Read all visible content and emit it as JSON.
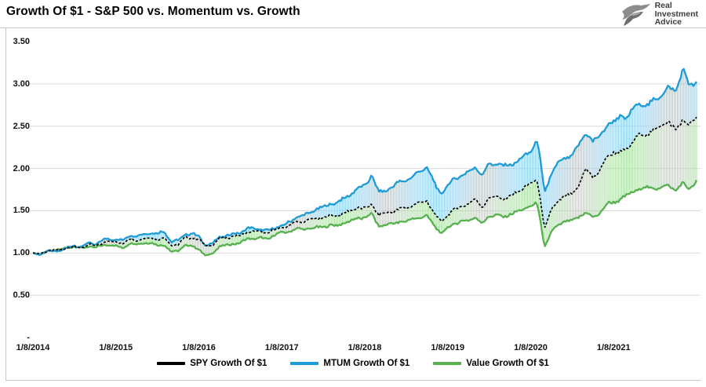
{
  "page": {
    "title": "Growth Of $1 - S&P 500 vs. Momentum vs. Growth"
  },
  "logo": {
    "icon": "eagle-icon",
    "lines": [
      "Real",
      "Investment",
      "Advice"
    ]
  },
  "chart_data": {
    "type": "line",
    "title": "Growth Of $1 - S&P 500 vs. Momentum vs. Growth",
    "xlabel": "",
    "ylabel": "",
    "ylim": [
      0,
      3.5
    ],
    "grid": "horizontal gridlines every 0.50 from 0.50 to 3.00",
    "legend_position": "bottom-center",
    "x_frequency": "weekly (rendered), anchors sampled monthly Jan-2014 through Dec-2021 plus final value",
    "x_tick_labels": [
      "1/8/2014",
      "1/8/2015",
      "1/8/2016",
      "1/8/2017",
      "1/8/2018",
      "1/8/2019",
      "1/8/2020",
      "1/8/2021"
    ],
    "y_tick_labels": [
      "3.50",
      "3.00",
      "2.50",
      "2.00",
      "1.50",
      "1.00",
      "0.50",
      "-"
    ],
    "y_tick_values": [
      3.5,
      3.0,
      2.5,
      2.0,
      1.5,
      1.0,
      0.5,
      0
    ],
    "band_fill": {
      "description": "vertical hatch lines between MTUM (top) and Value (bottom) at every weekly point",
      "top_color": "#8ccbea",
      "bottom_color": "#a8d9a1"
    },
    "series": [
      {
        "name": "SPY Growth Of $1",
        "color": "#000000",
        "style": "dashed",
        "values": [
          1.0,
          0.99,
          1.02,
          1.03,
          1.04,
          1.06,
          1.08,
          1.06,
          1.1,
          1.08,
          1.12,
          1.14,
          1.13,
          1.11,
          1.17,
          1.15,
          1.17,
          1.18,
          1.16,
          1.18,
          1.09,
          1.1,
          1.18,
          1.18,
          1.16,
          1.08,
          1.1,
          1.17,
          1.18,
          1.2,
          1.2,
          1.25,
          1.25,
          1.25,
          1.23,
          1.28,
          1.3,
          1.32,
          1.37,
          1.37,
          1.39,
          1.41,
          1.42,
          1.44,
          1.44,
          1.47,
          1.5,
          1.54,
          1.52,
          1.58,
          1.45,
          1.47,
          1.49,
          1.52,
          1.53,
          1.57,
          1.6,
          1.61,
          1.48,
          1.36,
          1.46,
          1.52,
          1.55,
          1.59,
          1.63,
          1.55,
          1.65,
          1.67,
          1.64,
          1.67,
          1.72,
          1.77,
          1.82,
          1.86,
          1.27,
          1.52,
          1.62,
          1.67,
          1.7,
          1.8,
          2.0,
          1.9,
          1.96,
          2.14,
          2.2,
          2.18,
          2.24,
          2.34,
          2.4,
          2.41,
          2.46,
          2.52,
          2.56,
          2.44,
          2.58,
          2.52,
          2.58
        ]
      },
      {
        "name": "MTUM Growth Of $1",
        "color": "#1f9bd7",
        "style": "solid",
        "values": [
          1.0,
          0.98,
          1.02,
          1.02,
          1.03,
          1.06,
          1.09,
          1.07,
          1.12,
          1.1,
          1.15,
          1.17,
          1.16,
          1.15,
          1.21,
          1.2,
          1.22,
          1.24,
          1.23,
          1.26,
          1.13,
          1.15,
          1.22,
          1.23,
          1.2,
          1.08,
          1.12,
          1.19,
          1.2,
          1.23,
          1.24,
          1.29,
          1.29,
          1.28,
          1.26,
          1.3,
          1.32,
          1.36,
          1.42,
          1.44,
          1.47,
          1.52,
          1.54,
          1.58,
          1.6,
          1.64,
          1.7,
          1.76,
          1.8,
          1.92,
          1.72,
          1.74,
          1.78,
          1.84,
          1.86,
          1.9,
          1.98,
          2.01,
          1.84,
          1.69,
          1.8,
          1.88,
          1.92,
          1.96,
          2.01,
          1.93,
          2.05,
          2.06,
          2.03,
          2.04,
          2.08,
          2.14,
          2.2,
          2.34,
          1.7,
          1.95,
          2.06,
          2.12,
          2.16,
          2.28,
          2.43,
          2.32,
          2.38,
          2.52,
          2.55,
          2.62,
          2.6,
          2.72,
          2.78,
          2.74,
          2.82,
          2.88,
          2.95,
          2.92,
          3.18,
          2.96,
          3.02
        ]
      },
      {
        "name": "Value Growth Of $1",
        "color": "#56b14e",
        "style": "solid",
        "values": [
          1.0,
          0.98,
          1.02,
          1.03,
          1.04,
          1.06,
          1.08,
          1.05,
          1.08,
          1.06,
          1.09,
          1.1,
          1.08,
          1.06,
          1.12,
          1.1,
          1.12,
          1.12,
          1.09,
          1.1,
          1.01,
          1.03,
          1.09,
          1.08,
          1.05,
          0.96,
          1.0,
          1.08,
          1.09,
          1.11,
          1.12,
          1.17,
          1.17,
          1.18,
          1.16,
          1.22,
          1.24,
          1.25,
          1.29,
          1.28,
          1.29,
          1.3,
          1.31,
          1.33,
          1.32,
          1.36,
          1.38,
          1.41,
          1.42,
          1.46,
          1.32,
          1.33,
          1.35,
          1.37,
          1.37,
          1.41,
          1.42,
          1.43,
          1.34,
          1.22,
          1.3,
          1.35,
          1.37,
          1.39,
          1.42,
          1.35,
          1.44,
          1.45,
          1.42,
          1.46,
          1.48,
          1.52,
          1.56,
          1.58,
          1.07,
          1.25,
          1.33,
          1.38,
          1.38,
          1.43,
          1.48,
          1.42,
          1.47,
          1.58,
          1.6,
          1.64,
          1.68,
          1.74,
          1.76,
          1.78,
          1.76,
          1.78,
          1.8,
          1.74,
          1.82,
          1.76,
          1.84
        ]
      }
    ]
  }
}
